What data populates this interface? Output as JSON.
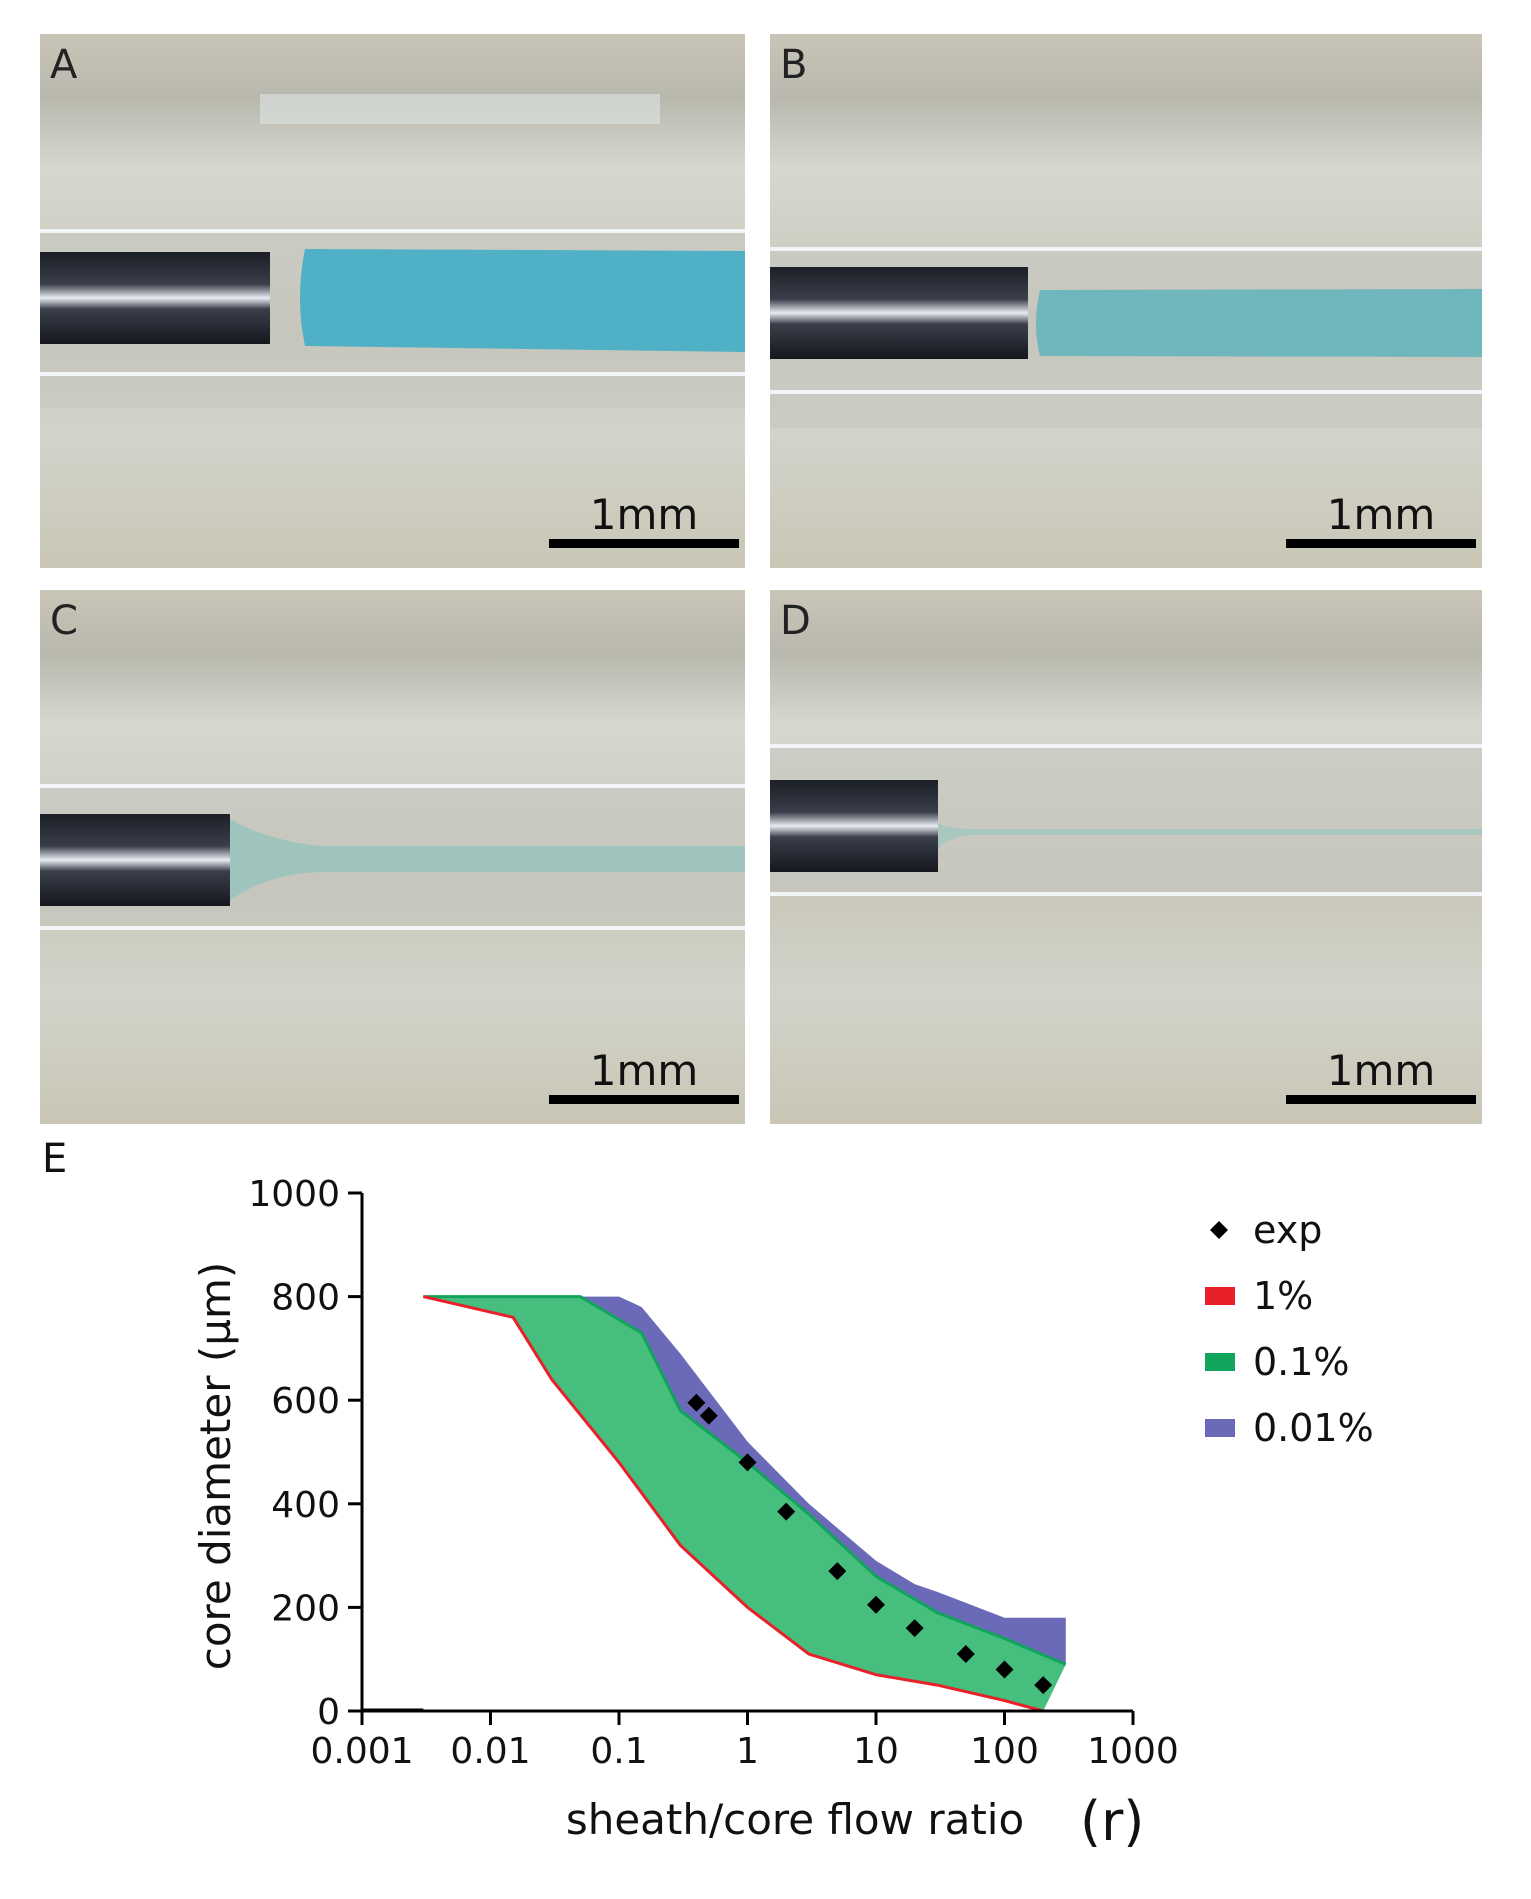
{
  "panels": [
    {
      "label": "A",
      "scale_bar": "1mm"
    },
    {
      "label": "B",
      "scale_bar": "1mm"
    },
    {
      "label": "C",
      "scale_bar": "1mm"
    },
    {
      "label": "D",
      "scale_bar": "1mm"
    }
  ],
  "chart_data": {
    "panel_label": "E",
    "type": "area",
    "xlabel": "sheath/core flow ratio",
    "xlabel_suffix": "(r)",
    "ylabel": "core diameter (µm)",
    "xscale": "log",
    "xlim": [
      0.001,
      1000
    ],
    "ylim": [
      0,
      1000
    ],
    "xticks": [
      0.001,
      0.01,
      0.1,
      1,
      10,
      100,
      1000
    ],
    "xtick_labels": [
      "0.001",
      "0.01",
      "0.1",
      "1",
      "10",
      "100",
      "1000"
    ],
    "yticks": [
      0,
      200,
      400,
      600,
      800,
      1000
    ],
    "ytick_labels": [
      "0",
      "200",
      "400",
      "600",
      "800",
      "1000"
    ],
    "legend_position": "top-right",
    "legend": [
      {
        "name": "exp",
        "marker": "diamond",
        "color": "#000000"
      },
      {
        "name": "1%",
        "marker": "square",
        "color": "#e8202a"
      },
      {
        "name": "0.1%",
        "marker": "square",
        "color": "#10a45c"
      },
      {
        "name": "0.01%",
        "marker": "square",
        "color": "#6a6ab8"
      }
    ],
    "series": [
      {
        "name": "1%",
        "color": "#e8202a",
        "x": [
          0.003,
          0.015,
          0.03,
          0.1,
          0.3,
          1,
          3,
          10,
          30,
          100,
          200
        ],
        "y": [
          800,
          760,
          640,
          480,
          320,
          200,
          110,
          70,
          50,
          20,
          0
        ]
      },
      {
        "name": "0.1%",
        "color": "#10a45c",
        "x": [
          0.003,
          0.05,
          0.15,
          0.3,
          1,
          3,
          10,
          30,
          100,
          300
        ],
        "y": [
          800,
          800,
          730,
          580,
          480,
          380,
          260,
          190,
          140,
          90
        ]
      },
      {
        "name": "0.01%",
        "color": "#6a6ab8",
        "x": [
          0.1,
          0.15,
          0.3,
          1,
          3,
          10,
          20,
          30,
          100,
          300
        ],
        "y": [
          800,
          780,
          690,
          520,
          400,
          290,
          245,
          230,
          180,
          180
        ]
      },
      {
        "name": "exp",
        "color": "#000000",
        "type": "scatter",
        "x": [
          0.4,
          0.5,
          1,
          2,
          5,
          10,
          20,
          50,
          100,
          200
        ],
        "y": [
          595,
          570,
          480,
          385,
          270,
          205,
          160,
          110,
          80,
          50
        ]
      }
    ]
  }
}
